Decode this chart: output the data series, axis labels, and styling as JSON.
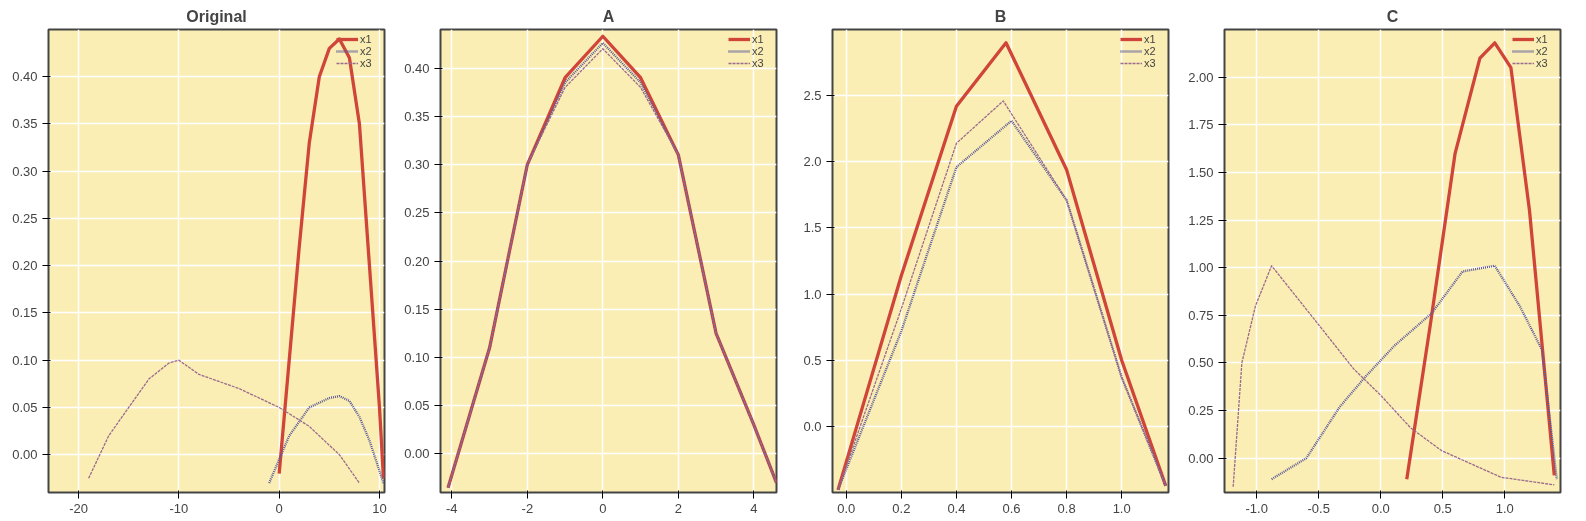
{
  "chart_data": [
    {
      "type": "line",
      "title": "Original",
      "xlim": [
        -23,
        10.5
      ],
      "ylim": [
        -0.04,
        0.45
      ],
      "grid": true,
      "legend": "top right",
      "xticks": [
        -20,
        -10,
        0,
        10
      ],
      "yticks": [
        {
          "value": 0,
          "label": "0.00"
        },
        {
          "value": 0.05,
          "label": "0.05"
        },
        {
          "value": 0.1,
          "label": "0.10"
        },
        {
          "value": 0.15,
          "label": "0.15"
        },
        {
          "value": 0.2,
          "label": "0.20"
        },
        {
          "value": 0.25,
          "label": "0.25"
        },
        {
          "value": 0.3,
          "label": "0.30"
        },
        {
          "value": 0.35,
          "label": "0.35"
        },
        {
          "value": 0.4,
          "label": "0.40"
        }
      ],
      "series": [
        {
          "name": "x1",
          "color": "#d0453a",
          "line_style": "solid",
          "x": [
            0,
            1,
            2,
            3,
            4,
            5,
            6,
            7,
            8,
            9,
            10,
            10.4
          ],
          "values": [
            -0.02,
            0.1,
            0.22,
            0.33,
            0.4,
            0.43,
            0.44,
            0.42,
            0.35,
            0.2,
            0.05,
            -0.025
          ]
        },
        {
          "name": "x2",
          "color": "#5a5a9a",
          "line_style": "dotted",
          "x": [
            -1,
            1,
            3,
            5,
            6,
            7,
            8,
            9,
            10.4
          ],
          "values": [
            -0.03,
            0.02,
            0.05,
            0.06,
            0.062,
            0.057,
            0.04,
            0.015,
            -0.03
          ]
        },
        {
          "name": "x3",
          "color": "#9a6a8e",
          "line_style": "dashed",
          "x": [
            -19,
            -17,
            -15,
            -13,
            -11,
            -10,
            -8,
            -4,
            0,
            3,
            6,
            8
          ],
          "values": [
            -0.025,
            0.02,
            0.05,
            0.08,
            0.097,
            0.1,
            0.085,
            0.07,
            0.05,
            0.03,
            0.0,
            -0.03
          ]
        }
      ]
    },
    {
      "type": "line",
      "title": "A",
      "xlim": [
        -4.3,
        4.6
      ],
      "ylim": [
        -0.04,
        0.44
      ],
      "grid": true,
      "legend": "top right",
      "xticks": [
        -4,
        -2,
        0,
        2,
        4
      ],
      "yticks": [
        {
          "value": 0,
          "label": "0.00"
        },
        {
          "value": 0.05,
          "label": "0.05"
        },
        {
          "value": 0.1,
          "label": "0.10"
        },
        {
          "value": 0.15,
          "label": "0.15"
        },
        {
          "value": 0.2,
          "label": "0.20"
        },
        {
          "value": 0.25,
          "label": "0.25"
        },
        {
          "value": 0.3,
          "label": "0.30"
        },
        {
          "value": 0.35,
          "label": "0.35"
        },
        {
          "value": 0.4,
          "label": "0.40"
        }
      ],
      "series": [
        {
          "name": "x1",
          "color": "#d0453a",
          "line_style": "solid",
          "x": [
            -4.1,
            -3,
            -2,
            -1,
            0,
            1,
            2,
            3,
            4,
            4.6
          ],
          "values": [
            -0.035,
            0.11,
            0.3,
            0.39,
            0.433,
            0.39,
            0.31,
            0.125,
            0.03,
            -0.03
          ]
        },
        {
          "name": "x2",
          "color": "#5a5a9a",
          "line_style": "dotted",
          "x": [
            -4.1,
            -3,
            -2,
            -1,
            0,
            1,
            2,
            3,
            4,
            4.6
          ],
          "values": [
            -0.035,
            0.11,
            0.3,
            0.385,
            0.426,
            0.385,
            0.31,
            0.125,
            0.03,
            -0.03
          ]
        },
        {
          "name": "x3",
          "color": "#9a6a8e",
          "line_style": "dashed",
          "x": [
            -4.1,
            -3,
            -2,
            -1,
            0,
            1,
            2,
            3,
            4,
            4.6
          ],
          "values": [
            -0.035,
            0.11,
            0.3,
            0.38,
            0.42,
            0.38,
            0.31,
            0.125,
            0.03,
            -0.03
          ]
        }
      ]
    },
    {
      "type": "line",
      "title": "B",
      "xlim": [
        -0.05,
        1.17
      ],
      "ylim": [
        -0.5,
        3.0
      ],
      "grid": true,
      "legend": "top right",
      "xticks": [
        {
          "value": 0,
          "label": "0.0"
        },
        {
          "value": 0.2,
          "label": "0.2"
        },
        {
          "value": 0.4,
          "label": "0.4"
        },
        {
          "value": 0.6,
          "label": "0.6"
        },
        {
          "value": 0.8,
          "label": "0.8"
        },
        {
          "value": 1.0,
          "label": "1.0"
        }
      ],
      "yticks": [
        {
          "value": 0,
          "label": "0.0"
        },
        {
          "value": 0.5,
          "label": "0.5"
        },
        {
          "value": 1.0,
          "label": "1.0"
        },
        {
          "value": 1.5,
          "label": "1.5"
        },
        {
          "value": 2.0,
          "label": "2.0"
        },
        {
          "value": 2.5,
          "label": "2.5"
        }
      ],
      "series": [
        {
          "name": "x1",
          "color": "#d0453a",
          "line_style": "solid",
          "x": [
            -0.03,
            0.2,
            0.4,
            0.58,
            0.8,
            1.0,
            1.16
          ],
          "values": [
            -0.48,
            1.14,
            2.42,
            2.9,
            1.94,
            0.5,
            -0.45
          ]
        },
        {
          "name": "x2",
          "color": "#5a5a9a",
          "line_style": "dotted",
          "x": [
            -0.03,
            0.2,
            0.4,
            0.6,
            0.8,
            1.0,
            1.16
          ],
          "values": [
            -0.48,
            0.72,
            1.96,
            2.31,
            1.71,
            0.37,
            -0.45
          ]
        },
        {
          "name": "x3",
          "color": "#9a6a8e",
          "line_style": "dashed",
          "x": [
            -0.03,
            0.2,
            0.4,
            0.57,
            0.8,
            1.0,
            1.16
          ],
          "values": [
            -0.48,
            0.89,
            2.14,
            2.46,
            1.71,
            0.37,
            -0.45
          ]
        }
      ]
    },
    {
      "type": "line",
      "title": "C",
      "xlim": [
        -1.26,
        1.45
      ],
      "ylim": [
        -0.18,
        2.25
      ],
      "grid": true,
      "legend": "top right",
      "xticks": [
        {
          "value": -1,
          "label": "-1.0"
        },
        {
          "value": -0.5,
          "label": "-0.5"
        },
        {
          "value": 0,
          "label": "0.0"
        },
        {
          "value": 0.5,
          "label": "0.5"
        },
        {
          "value": 1,
          "label": "1.0"
        }
      ],
      "yticks": [
        {
          "value": 0,
          "label": "0.00"
        },
        {
          "value": 0.25,
          "label": "0.25"
        },
        {
          "value": 0.5,
          "label": "0.50"
        },
        {
          "value": 0.75,
          "label": "0.75"
        },
        {
          "value": 1.0,
          "label": "1.00"
        },
        {
          "value": 1.25,
          "label": "1.25"
        },
        {
          "value": 1.5,
          "label": "1.50"
        },
        {
          "value": 1.75,
          "label": "1.75"
        },
        {
          "value": 2.0,
          "label": "2.00"
        }
      ],
      "series": [
        {
          "name": "x1",
          "color": "#d0453a",
          "line_style": "solid",
          "x": [
            0.21,
            0.4,
            0.6,
            0.8,
            0.92,
            1.05,
            1.2,
            1.4
          ],
          "values": [
            -0.11,
            0.7,
            1.6,
            2.1,
            2.18,
            2.05,
            1.3,
            -0.09
          ]
        },
        {
          "name": "x2",
          "color": "#5a5a9a",
          "line_style": "dotted",
          "x": [
            -0.88,
            -0.6,
            -0.33,
            -0.12,
            0.11,
            0.41,
            0.66,
            0.92,
            1.12,
            1.3,
            1.42
          ],
          "values": [
            -0.11,
            0.0,
            0.27,
            0.43,
            0.59,
            0.76,
            0.98,
            1.01,
            0.8,
            0.57,
            -0.11
          ]
        },
        {
          "name": "x3",
          "color": "#9a6a8e",
          "line_style": "dashed",
          "x": [
            -1.19,
            -1.12,
            -1.01,
            -0.88,
            -0.5,
            -0.22,
            0.0,
            0.24,
            0.49,
            0.97,
            1.4
          ],
          "values": [
            -0.15,
            0.5,
            0.8,
            1.01,
            0.7,
            0.47,
            0.33,
            0.16,
            0.04,
            -0.1,
            -0.14
          ]
        }
      ]
    }
  ]
}
